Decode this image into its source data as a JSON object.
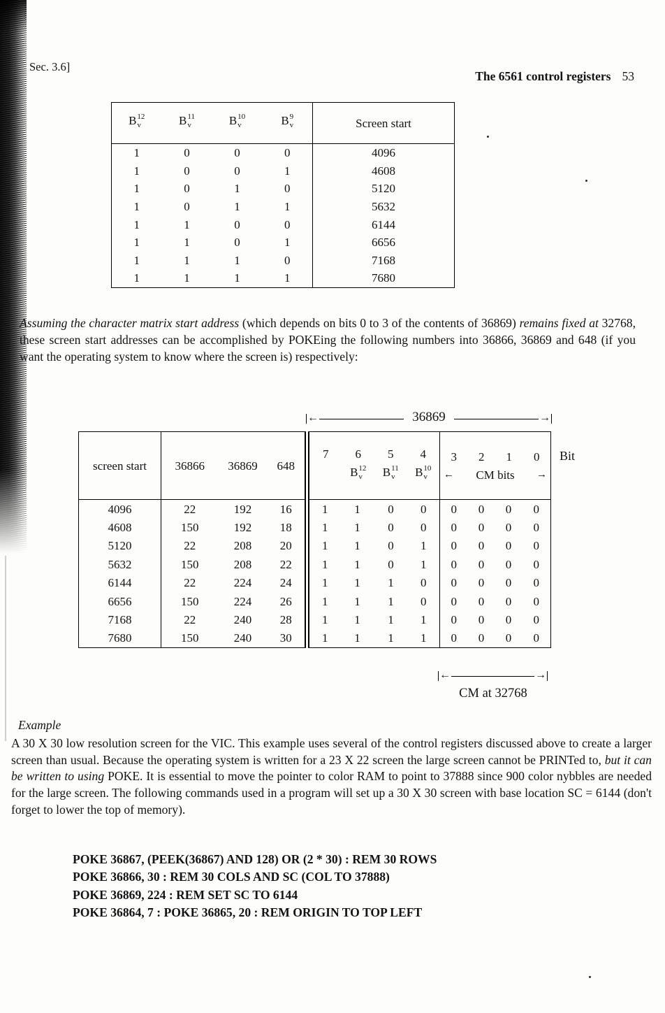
{
  "header": {
    "section": "Sec. 3.6]",
    "title": "The 6561 control registers",
    "page_number": "53"
  },
  "icons": {
    "left_arrow": "←",
    "right_arrow": "→"
  },
  "table1": {
    "bit_headers": [
      {
        "base": "B",
        "sup": "12",
        "sub": "v"
      },
      {
        "base": "B",
        "sup": "11",
        "sub": "v"
      },
      {
        "base": "B",
        "sup": "10",
        "sub": "v"
      },
      {
        "base": "B",
        "sup": "9",
        "sub": "v"
      }
    ],
    "value_header": "Screen start",
    "rows": [
      [
        "1",
        "0",
        "0",
        "0",
        "4096"
      ],
      [
        "1",
        "0",
        "0",
        "1",
        "4608"
      ],
      [
        "1",
        "0",
        "1",
        "0",
        "5120"
      ],
      [
        "1",
        "0",
        "1",
        "1",
        "5632"
      ],
      [
        "1",
        "1",
        "0",
        "0",
        "6144"
      ],
      [
        "1",
        "1",
        "0",
        "1",
        "6656"
      ],
      [
        "1",
        "1",
        "1",
        "0",
        "7168"
      ],
      [
        "1",
        "1",
        "1",
        "1",
        "7680"
      ]
    ]
  },
  "paragraph1": {
    "italic1": "Assuming the character matrix start address",
    "normal1": " (which depends on bits 0 to 3 of the contents of 36869) ",
    "italic2": "remains fixed at",
    "normal2": " 32768, these screen start addresses can be accomplished by POKEing the following numbers into 36866, 36869 and 648 (if you want the operating system to know where the screen is) respectively:"
  },
  "table2": {
    "top_arrow_label": "36869",
    "col_screen_start": "screen start",
    "col_36866": "36866",
    "col_36869": "36869",
    "col_648": "648",
    "bit_numbers": [
      "7",
      "6",
      "5",
      "4"
    ],
    "b_headers": [
      {
        "base": "B",
        "sup": "12",
        "sub": "v"
      },
      {
        "base": "B",
        "sup": "11",
        "sub": "v"
      },
      {
        "base": "B",
        "sup": "10",
        "sub": "v"
      }
    ],
    "cm_bit_numbers": [
      "3",
      "2",
      "1",
      "0"
    ],
    "cm_label": "CM bits",
    "bit_label": "Bit",
    "rows": [
      [
        "4096",
        "22",
        "192",
        "16",
        "1",
        "1",
        "0",
        "0",
        "0",
        "0",
        "0",
        "0"
      ],
      [
        "4608",
        "150",
        "192",
        "18",
        "1",
        "1",
        "0",
        "0",
        "0",
        "0",
        "0",
        "0"
      ],
      [
        "5120",
        "22",
        "208",
        "20",
        "1",
        "1",
        "0",
        "1",
        "0",
        "0",
        "0",
        "0"
      ],
      [
        "5632",
        "150",
        "208",
        "22",
        "1",
        "1",
        "0",
        "1",
        "0",
        "0",
        "0",
        "0"
      ],
      [
        "6144",
        "22",
        "224",
        "24",
        "1",
        "1",
        "1",
        "0",
        "0",
        "0",
        "0",
        "0"
      ],
      [
        "6656",
        "150",
        "224",
        "26",
        "1",
        "1",
        "1",
        "0",
        "0",
        "0",
        "0",
        "0"
      ],
      [
        "7168",
        "22",
        "240",
        "28",
        "1",
        "1",
        "1",
        "1",
        "0",
        "0",
        "0",
        "0"
      ],
      [
        "7680",
        "150",
        "240",
        "30",
        "1",
        "1",
        "1",
        "1",
        "0",
        "0",
        "0",
        "0"
      ]
    ],
    "cm_arrow_caption": "CM at 32768"
  },
  "example": {
    "heading": "Example",
    "normal1": "A 30 X 30 low resolution screen for the VIC. This example uses several of the control registers discussed above to create a larger screen than usual. Because the operating system is written for a 23 X 22 screen the large screen cannot be PRINTed to, ",
    "italic1": "but it can be written to using",
    "normal2": " POKE. It is essential to move the pointer to color RAM to point to 37888 since 900 color nybbles are needed for the large screen. The following commands used in a program will set up a 30 X 30 screen with base location SC = 6144 (don't forget to lower the top of memory)."
  },
  "code": {
    "lines": [
      "POKE 36867, (PEEK(36867) AND 128) OR (2 * 30) : REM 30 ROWS",
      "POKE 36866, 30 : REM 30 COLS AND SC (COL TO 37888)",
      "POKE 36869, 224 : REM SET SC TO 6144",
      "POKE 36864, 7 : POKE 36865, 20 : REM ORIGIN TO TOP LEFT"
    ]
  }
}
